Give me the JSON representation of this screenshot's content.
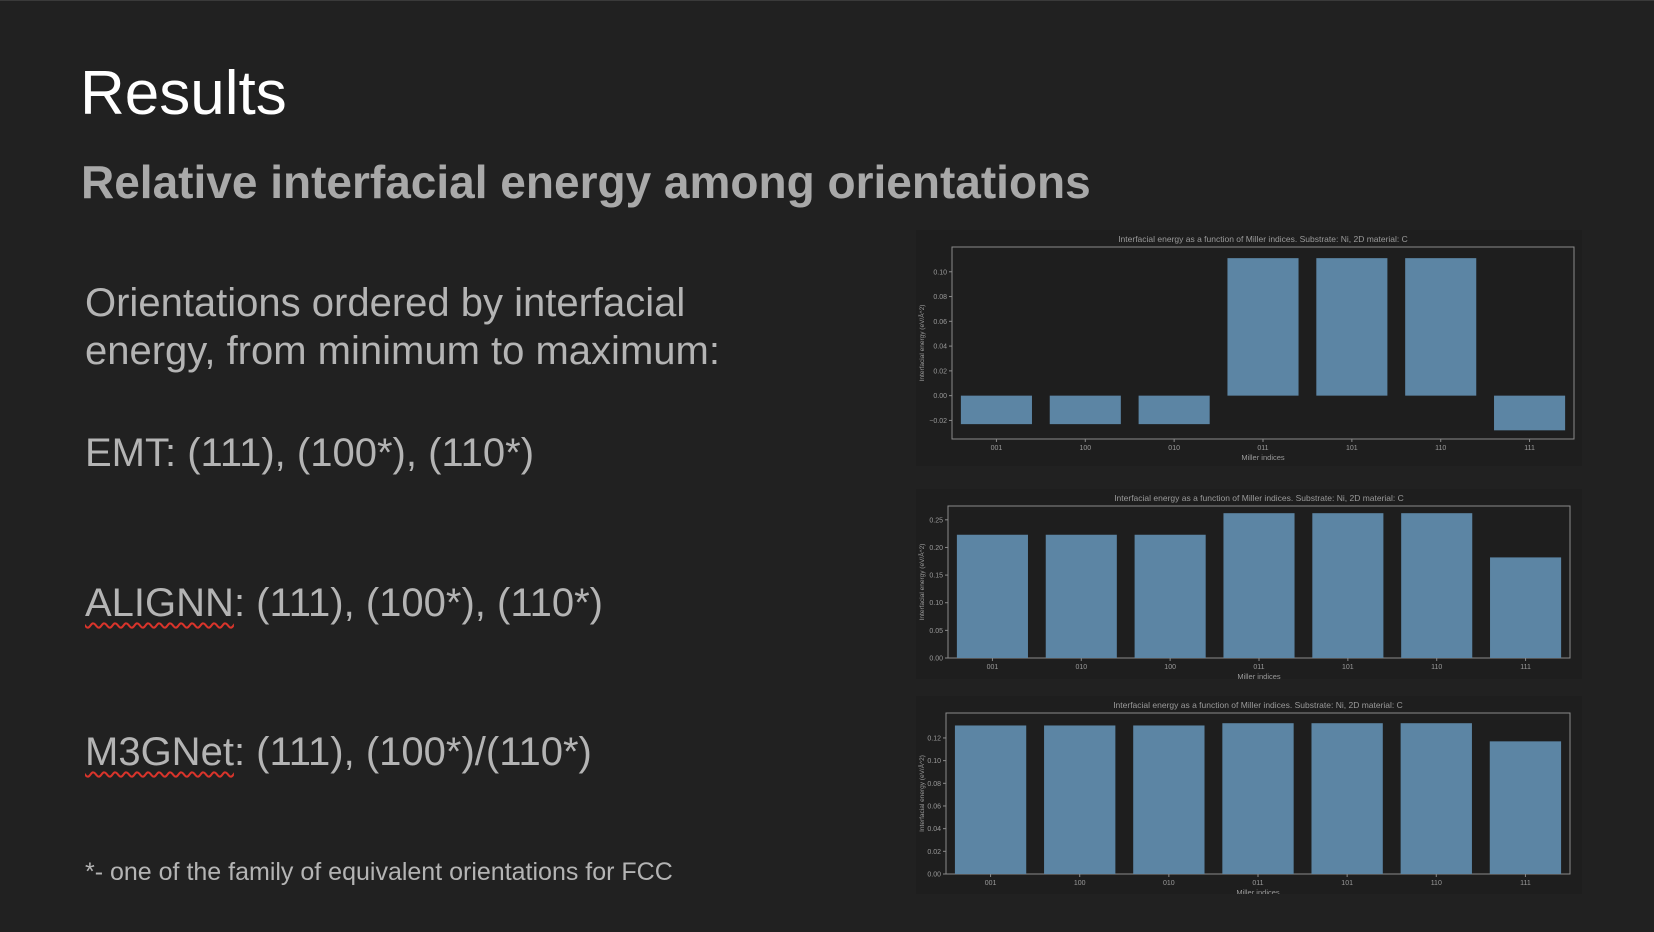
{
  "slide": {
    "title": "Results",
    "subtitle": "Relative interfacial energy among orientations",
    "intro": "Orientations ordered by interfacial energy, from minimum to maximum:",
    "rows": [
      {
        "model": "EMT",
        "ordering": ": (111), (100*), (110*)"
      },
      {
        "model": "ALIGNN",
        "ordering": ": (111), (100*), (110*)"
      },
      {
        "model": "M3GNet",
        "ordering": ": (111), (100*)/(110*)"
      }
    ],
    "footnote": "*- one of the family of equivalent orientations for FCC"
  },
  "colors": {
    "background": "#212121",
    "bar": "#5c85a4",
    "axis": "#8a8a8a",
    "text": "#b4b4b4",
    "spellcheck": "#d9342b"
  },
  "chart_data": [
    {
      "type": "bar",
      "title": "Interfacial energy as a function of Miller indices. Substrate: Ni, 2D material: C",
      "xlabel": "Miller indices",
      "ylabel": "Interfacial energy (eV/Å^2)",
      "categories": [
        "001",
        "100",
        "010",
        "011",
        "101",
        "110",
        "111"
      ],
      "values": [
        -0.023,
        -0.023,
        -0.023,
        0.111,
        0.111,
        0.111,
        -0.028
      ],
      "ylim": [
        -0.035,
        0.12
      ],
      "yticks": [
        -0.02,
        0.0,
        0.02,
        0.04,
        0.06,
        0.08,
        0.1
      ],
      "ytick_labels": [
        "−0.02",
        "0.00",
        "0.02",
        "0.04",
        "0.06",
        "0.08",
        "0.10"
      ],
      "grid": false
    },
    {
      "type": "bar",
      "title": "Interfacial energy as a function of Miller indices. Substrate: Ni, 2D material: C",
      "xlabel": "Miller indices",
      "ylabel": "Interfacial energy (eV/Å^2)",
      "categories": [
        "001",
        "010",
        "100",
        "011",
        "101",
        "110",
        "111"
      ],
      "values": [
        0.223,
        0.223,
        0.223,
        0.262,
        0.262,
        0.262,
        0.182
      ],
      "ylim": [
        0,
        0.275
      ],
      "yticks": [
        0.0,
        0.05,
        0.1,
        0.15,
        0.2,
        0.25
      ],
      "ytick_labels": [
        "0.00",
        "0.05",
        "0.10",
        "0.15",
        "0.20",
        "0.25"
      ],
      "grid": false
    },
    {
      "type": "bar",
      "title": "Interfacial energy as a function of Miller indices. Substrate: Ni, 2D material: C",
      "xlabel": "Miller indices",
      "ylabel": "Interfacial energy (eV/Å^2)",
      "categories": [
        "001",
        "100",
        "010",
        "011",
        "101",
        "110",
        "111"
      ],
      "values": [
        0.131,
        0.131,
        0.131,
        0.133,
        0.133,
        0.133,
        0.117
      ],
      "ylim": [
        0,
        0.142
      ],
      "yticks": [
        0.0,
        0.02,
        0.04,
        0.06,
        0.08,
        0.1,
        0.12
      ],
      "ytick_labels": [
        "0.00",
        "0.02",
        "0.04",
        "0.06",
        "0.08",
        "0.10",
        "0.12"
      ],
      "grid": false
    }
  ]
}
